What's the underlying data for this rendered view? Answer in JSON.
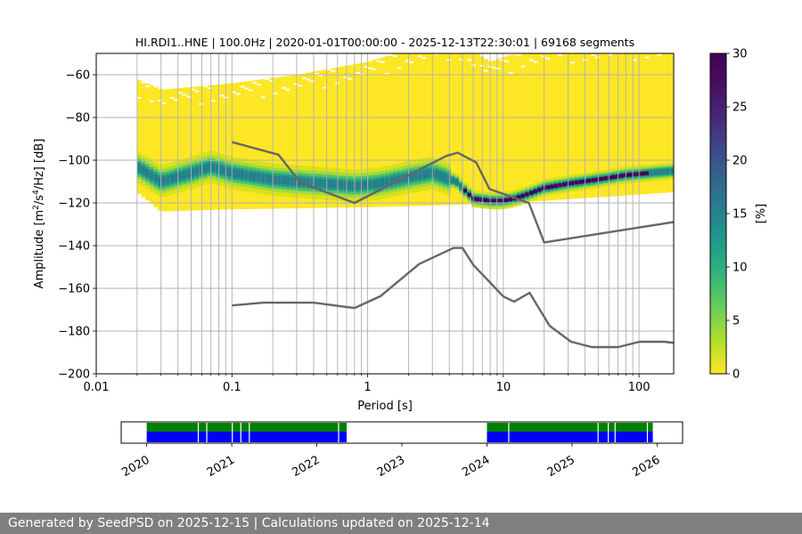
{
  "chart_data": [
    {
      "type": "heatmap",
      "title": "HI.RDI1..HNE | 100.0Hz | 2020-01-01T00:00:00 - 2025-12-13T22:30:01 | 69168 segments",
      "xlabel": "Period [s]",
      "ylabel_parts": [
        "Amplitude [m",
        "2",
        "/s",
        "4",
        "/Hz] [dB]"
      ],
      "x_scale": "log",
      "xlim": [
        0.01,
        180
      ],
      "ylim": [
        -200,
        -50
      ],
      "x_ticks": [
        0.01,
        0.1,
        1,
        10,
        100
      ],
      "x_tick_labels": [
        "0.01",
        "0.1",
        "1",
        "10",
        "100"
      ],
      "y_ticks": [
        -200,
        -180,
        -160,
        -140,
        -120,
        -100,
        -80,
        -60
      ],
      "y_tick_labels": [
        "−200",
        "−180",
        "−160",
        "−140",
        "−120",
        "−100",
        "−80",
        "−60"
      ],
      "grid": true,
      "colorbar": {
        "label": "[%]",
        "range": [
          0,
          30
        ],
        "ticks": [
          0,
          5,
          10,
          15,
          20,
          25,
          30
        ],
        "tick_labels": [
          "0",
          "5",
          "10",
          "15",
          "20",
          "25",
          "30"
        ],
        "colormap": "viridis"
      },
      "period_band": [
        0.02,
        180
      ],
      "mode_curve": {
        "period": [
          0.02,
          0.03,
          0.05,
          0.07,
          0.1,
          0.2,
          0.3,
          0.5,
          0.8,
          1.2,
          2,
          3,
          4.5,
          6,
          8,
          10,
          12,
          15,
          20,
          30,
          50,
          80,
          120,
          180
        ],
        "db": [
          -103,
          -110,
          -106,
          -103,
          -106,
          -109,
          -110,
          -111,
          -112,
          -111,
          -108,
          -106,
          -110,
          -118,
          -119,
          -119,
          -118,
          -116,
          -113,
          -111,
          -109,
          -107,
          -106,
          -105
        ]
      },
      "lower_band_edge": {
        "period": [
          0.02,
          0.03,
          0.1,
          1,
          4,
          10,
          20,
          180
        ],
        "db": [
          -115,
          -124,
          -123,
          -122,
          -121,
          -120,
          -119,
          -115
        ]
      },
      "upper_band_edge": {
        "period": [
          0.02,
          0.03,
          0.1,
          0.3,
          1,
          2,
          4.5,
          8,
          15,
          30,
          180
        ],
        "db": [
          -70,
          -75,
          -72,
          -68,
          -62,
          -56,
          -52,
          -62,
          -56,
          -54,
          -52
        ]
      },
      "noise_models": [
        {
          "period": [
            0.1,
            0.22,
            0.32,
            0.8,
            3.8,
            4.6,
            6.3,
            7.9,
            15.4,
            20,
            354.8
          ],
          "db": [
            -91.5,
            -97.4,
            -110.5,
            -120,
            -98,
            -96.5,
            -101,
            -113.5,
            -120,
            -138.5,
            -126
          ]
        },
        {
          "period": [
            0.1,
            0.17,
            0.4,
            0.8,
            1.24,
            2.4,
            4.3,
            5,
            6,
            10,
            12,
            15.6,
            21.9,
            31.6,
            45,
            70,
            101,
            154,
            328
          ],
          "db": [
            -168,
            -166.7,
            -166.7,
            -169.2,
            -163.7,
            -148.6,
            -141.1,
            -141.1,
            -149,
            -163.8,
            -166.2,
            -162.1,
            -177.5,
            -185,
            -187.5,
            -187.5,
            -185,
            -185,
            -187.5
          ]
        }
      ]
    },
    {
      "type": "availability",
      "x_ticks": [
        "2020",
        "2021",
        "2022",
        "2023",
        "2024",
        "2025",
        "2026"
      ],
      "xlim": [
        2019.7,
        2026.3
      ],
      "availability_periods": [
        [
          2020.0,
          2022.35
        ],
        [
          2024.0,
          2025.95
        ]
      ],
      "data_gaps": [
        2020.6,
        2020.7,
        2021.0,
        2021.1,
        2021.2,
        2022.25,
        2024.25,
        2025.3,
        2025.42,
        2025.5,
        2025.88
      ]
    }
  ],
  "footer": "Generated by SeedPSD on 2025-12-15 | Calculations updated on 2025-12-14",
  "colors": {
    "psd_model_line": "#666666",
    "available_green": "#008000",
    "available_blue": "#0000ff",
    "footer_bg": "#7f7f7f"
  }
}
